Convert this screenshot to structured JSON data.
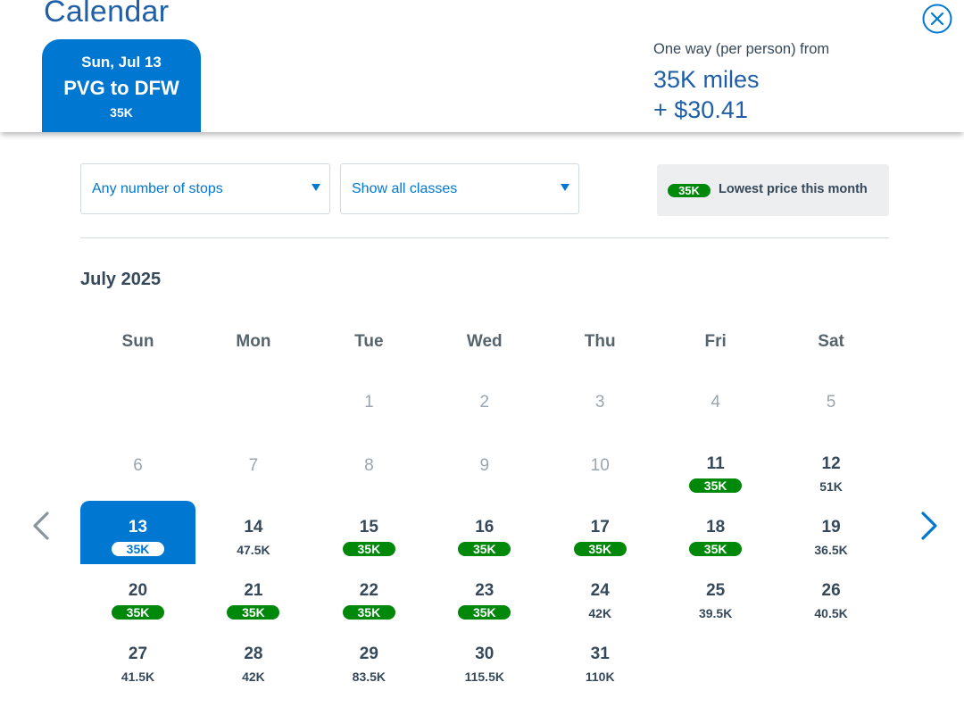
{
  "header": {
    "title": "Calendar",
    "close_icon": "close-circle-icon",
    "selected_flight": {
      "date": "Sun, Jul 13",
      "route": "PVG to DFW",
      "price": "35K"
    },
    "fare": {
      "caption": "One way (per person) from",
      "miles": "35K miles",
      "cash": "+ $30.41"
    }
  },
  "filters": {
    "stops": {
      "value": "Any number of stops"
    },
    "classes": {
      "value": "Show all classes"
    },
    "legend": {
      "badge": "35K",
      "text": "Lowest price this month"
    }
  },
  "colors": {
    "brand_blue": "#0078d2",
    "title_blue": "#1f5fa8",
    "lowest_green": "#00880b"
  },
  "calendar": {
    "month": "July 2025",
    "weekdays": [
      "Sun",
      "Mon",
      "Tue",
      "Wed",
      "Thu",
      "Fri",
      "Sat"
    ],
    "prev_icon": "chevron-left-icon",
    "next_icon": "chevron-right-icon",
    "days": [
      {
        "day": "1",
        "price": "",
        "low": false,
        "past": true
      },
      {
        "day": "2",
        "price": "",
        "low": false,
        "past": true
      },
      {
        "day": "3",
        "price": "",
        "low": false,
        "past": true
      },
      {
        "day": "4",
        "price": "",
        "low": false,
        "past": true
      },
      {
        "day": "5",
        "price": "",
        "low": false,
        "past": true
      },
      {
        "day": "6",
        "price": "",
        "low": false,
        "past": true
      },
      {
        "day": "7",
        "price": "",
        "low": false,
        "past": true
      },
      {
        "day": "8",
        "price": "",
        "low": false,
        "past": true
      },
      {
        "day": "9",
        "price": "",
        "low": false,
        "past": true
      },
      {
        "day": "10",
        "price": "",
        "low": false,
        "past": true
      },
      {
        "day": "11",
        "price": "35K",
        "low": true,
        "past": false
      },
      {
        "day": "12",
        "price": "51K",
        "low": false,
        "past": false
      },
      {
        "day": "13",
        "price": "35K",
        "low": true,
        "past": false,
        "selected": true
      },
      {
        "day": "14",
        "price": "47.5K",
        "low": false,
        "past": false
      },
      {
        "day": "15",
        "price": "35K",
        "low": true,
        "past": false
      },
      {
        "day": "16",
        "price": "35K",
        "low": true,
        "past": false
      },
      {
        "day": "17",
        "price": "35K",
        "low": true,
        "past": false
      },
      {
        "day": "18",
        "price": "35K",
        "low": true,
        "past": false
      },
      {
        "day": "19",
        "price": "36.5K",
        "low": false,
        "past": false
      },
      {
        "day": "20",
        "price": "35K",
        "low": true,
        "past": false
      },
      {
        "day": "21",
        "price": "35K",
        "low": true,
        "past": false
      },
      {
        "day": "22",
        "price": "35K",
        "low": true,
        "past": false
      },
      {
        "day": "23",
        "price": "35K",
        "low": true,
        "past": false
      },
      {
        "day": "24",
        "price": "42K",
        "low": false,
        "past": false
      },
      {
        "day": "25",
        "price": "39.5K",
        "low": false,
        "past": false
      },
      {
        "day": "26",
        "price": "40.5K",
        "low": false,
        "past": false
      },
      {
        "day": "27",
        "price": "41.5K",
        "low": false,
        "past": false
      },
      {
        "day": "28",
        "price": "42K",
        "low": false,
        "past": false
      },
      {
        "day": "29",
        "price": "83.5K",
        "low": false,
        "past": false
      },
      {
        "day": "30",
        "price": "115.5K",
        "low": false,
        "past": false
      },
      {
        "day": "31",
        "price": "110K",
        "low": false,
        "past": false
      }
    ]
  }
}
